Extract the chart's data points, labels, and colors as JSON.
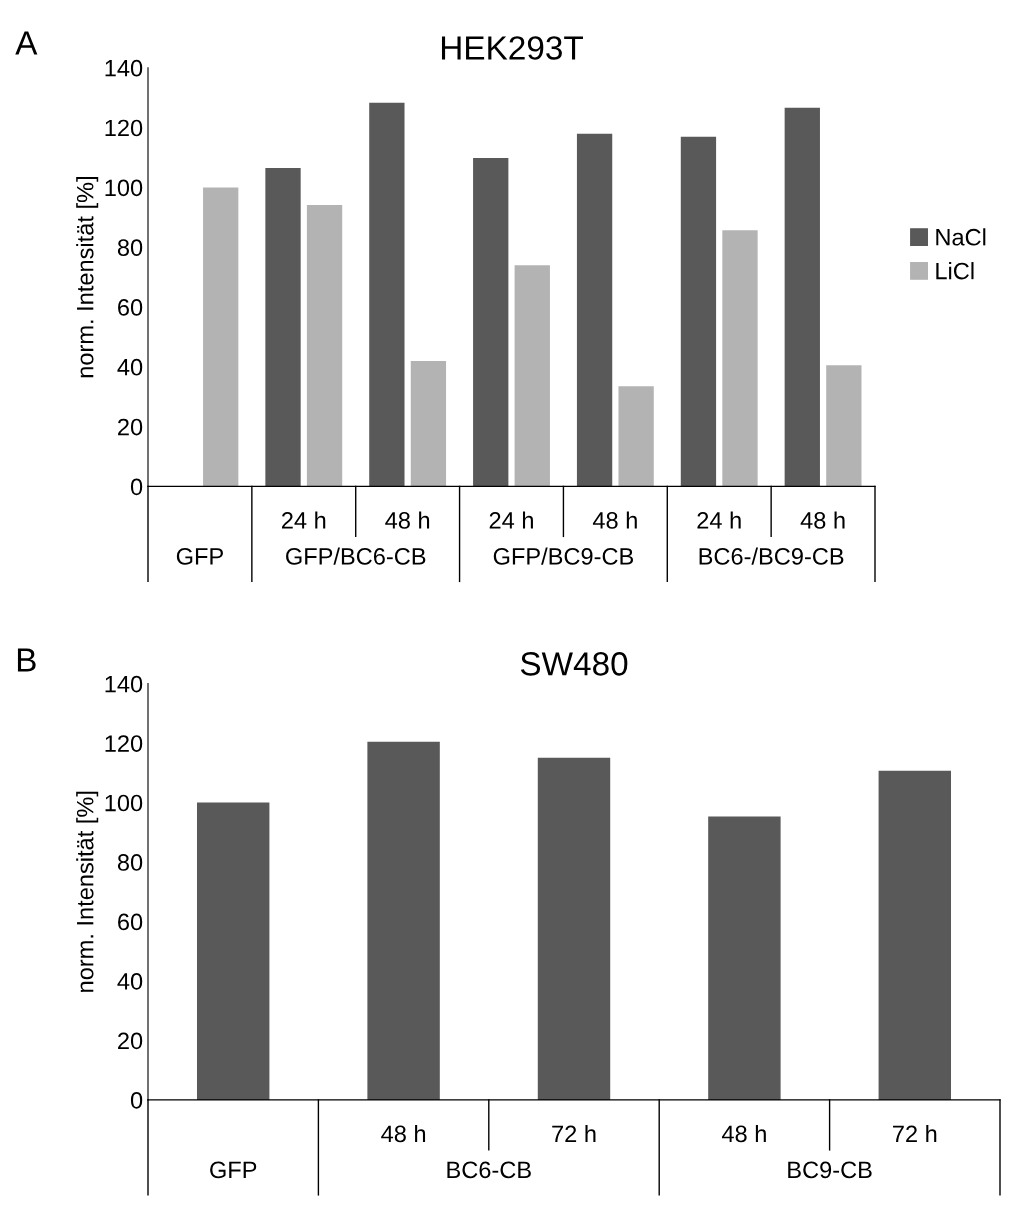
{
  "chart_data": [
    {
      "type": "bar",
      "title": "HEK293T",
      "ylabel": "norm. Intensität [%]",
      "categories": [
        null,
        "24 h",
        "48 h",
        "24 h",
        "48 h",
        "24 h",
        "48 h"
      ],
      "series": [
        {
          "name": "NaCl",
          "color": "#595959",
          "values": [
            null,
            106.5,
            128.3,
            109.8,
            117.9,
            116.9,
            126.6
          ]
        },
        {
          "name": "LiCl",
          "color": "#b3b3b3",
          "values": [
            100,
            94.1,
            41.9,
            74,
            33.5,
            85.7,
            40.5
          ]
        }
      ],
      "ylim": [
        0,
        140
      ],
      "yticks": [
        0,
        20,
        40,
        60,
        80,
        100,
        120,
        140
      ],
      "grid": false,
      "legend": "right",
      "annotations": [
        "A",
        "GFP",
        "GFP/BC6-CB",
        "GFP/BC9-CB",
        "BC6-/BC9-CB"
      ]
    },
    {
      "type": "bar",
      "title": "SW480",
      "ylabel": "norm. Intensität [%]",
      "categories": [
        null,
        "48 h",
        "72 h",
        "48 h",
        "72 h"
      ],
      "series": [
        {
          "color": "#595959",
          "values": [
            100,
            120.5,
            115.1,
            95.3,
            110.7
          ]
        }
      ],
      "ylim": [
        0,
        140
      ],
      "yticks": [
        0,
        20,
        40,
        60,
        80,
        100,
        120,
        140
      ],
      "grid": false,
      "legend": false,
      "annotations": [
        "B",
        "GFP",
        "BC6-CB",
        "BC9-CB"
      ]
    }
  ]
}
